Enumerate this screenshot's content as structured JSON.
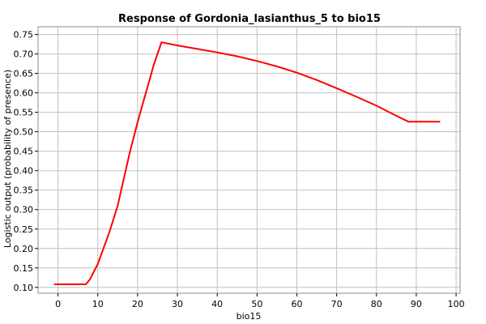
{
  "chart_data": {
    "type": "line",
    "title": "Response of Gordonia_lasianthus_5 to bio15",
    "xlabel": "bio15",
    "ylabel": "Logistic output (probability of presence)",
    "xlim": [
      -5,
      101
    ],
    "ylim": [
      0.085,
      0.77
    ],
    "xticks": [
      0,
      10,
      20,
      30,
      40,
      50,
      60,
      70,
      80,
      90,
      100
    ],
    "yticks": [
      0.1,
      0.15,
      0.2,
      0.25,
      0.3,
      0.35,
      0.4,
      0.45,
      0.5,
      0.55,
      0.6,
      0.65,
      0.7,
      0.75
    ],
    "grid": true,
    "series": [
      {
        "color": "#ff0000",
        "x": [
          -1,
          7,
          8,
          10,
          13,
          15,
          18,
          20,
          21.5,
          22.5,
          24,
          26,
          30,
          35,
          40,
          45,
          50,
          55,
          60,
          65,
          70,
          75,
          80,
          85,
          88,
          96
        ],
        "y": [
          0.108,
          0.108,
          0.12,
          0.16,
          0.245,
          0.31,
          0.445,
          0.525,
          0.58,
          0.615,
          0.67,
          0.73,
          0.722,
          0.713,
          0.704,
          0.694,
          0.682,
          0.668,
          0.652,
          0.633,
          0.612,
          0.59,
          0.567,
          0.541,
          0.526,
          0.526
        ]
      }
    ]
  }
}
